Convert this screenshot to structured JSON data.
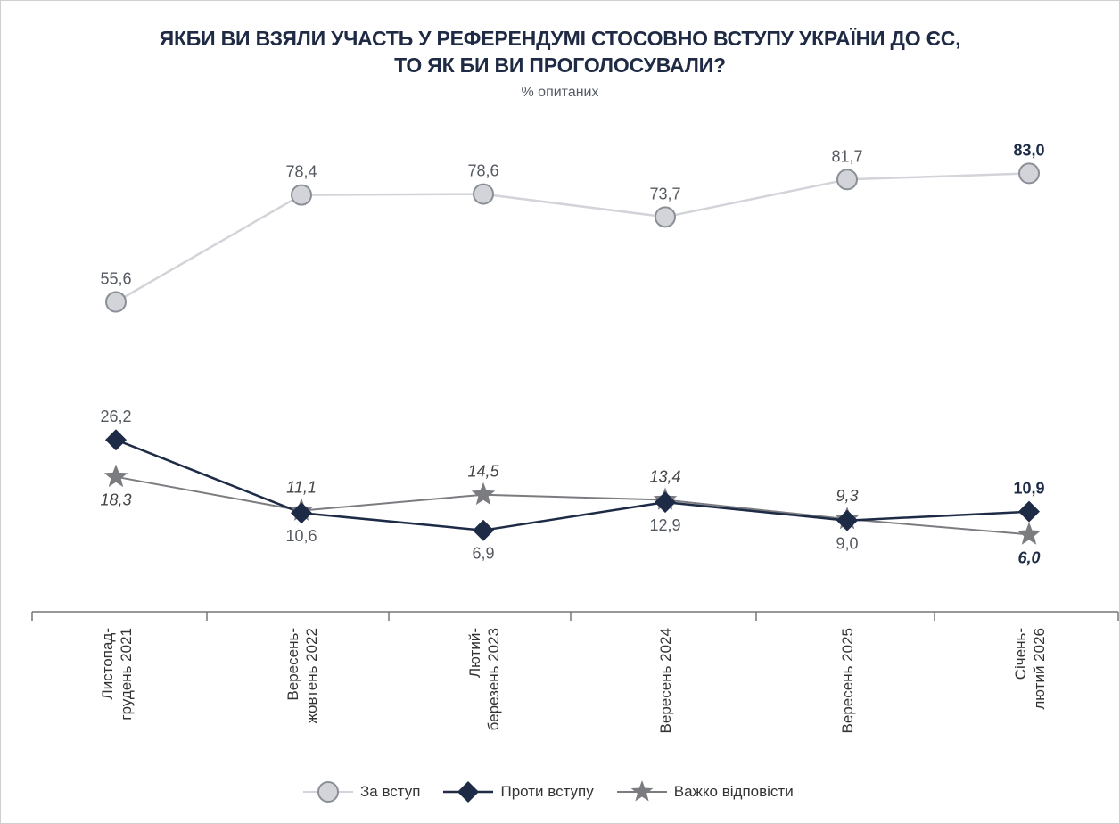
{
  "title_line1": "ЯКБИ ВИ ВЗЯЛИ УЧАСТЬ У РЕФЕРЕНДУМІ СТОСОВНО ВСТУПУ УКРАЇНИ ДО ЄС,",
  "title_line2": "ТО ЯК БИ ВИ ПРОГОЛОСУВАЛИ?",
  "subtitle": "% опитаних",
  "colors": {
    "for": "#d2d4d9",
    "for_stroke": "#8a8e96",
    "against": "#1e2b46",
    "hard": "#7a7c80",
    "axis": "#777777"
  },
  "chart_data": {
    "type": "line",
    "categories": [
      [
        "Листопад-",
        "грудень 2021"
      ],
      [
        "Вересень-",
        "жовтень 2022"
      ],
      [
        "Лютий-",
        "березень 2023"
      ],
      [
        "Вересень 2024"
      ],
      [
        "Вересень 2025"
      ],
      [
        "Січень-",
        "лютий 2026"
      ]
    ],
    "ylim": [
      0,
      100
    ],
    "grid": false,
    "legend_position": "bottom",
    "series": [
      {
        "name": "За вступ",
        "key": "for",
        "marker": "circle",
        "values": [
          55.6,
          78.4,
          78.6,
          73.7,
          81.7,
          83.0
        ],
        "labels": [
          "55,6",
          "78,4",
          "78,6",
          "73,7",
          "81,7",
          "83,0"
        ]
      },
      {
        "name": "Проти вступу",
        "key": "against",
        "marker": "diamond",
        "values": [
          26.2,
          10.6,
          6.9,
          12.9,
          9.0,
          10.9
        ],
        "labels": [
          "26,2",
          "10,6",
          "6,9",
          "12,9",
          "9,0",
          "10,9"
        ]
      },
      {
        "name": "Важко відповісти",
        "key": "hard",
        "marker": "star",
        "values": [
          18.3,
          11.1,
          14.5,
          13.4,
          9.3,
          6.0
        ],
        "labels": [
          "18,3",
          "11,1",
          "14,5",
          "13,4",
          "9,3",
          "6,0"
        ]
      }
    ]
  }
}
